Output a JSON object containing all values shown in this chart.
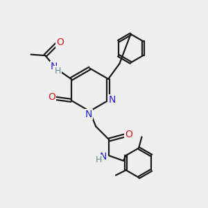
{
  "bg_color": "#efefef",
  "bond_color": "#1a1a1a",
  "N_color": "#2020cc",
  "O_color": "#cc2020",
  "H_color": "#5a8a8a",
  "line_width": 1.6,
  "figsize": [
    3.0,
    3.0
  ],
  "dpi": 100,
  "xlim": [
    0,
    10
  ],
  "ylim": [
    0,
    10
  ]
}
